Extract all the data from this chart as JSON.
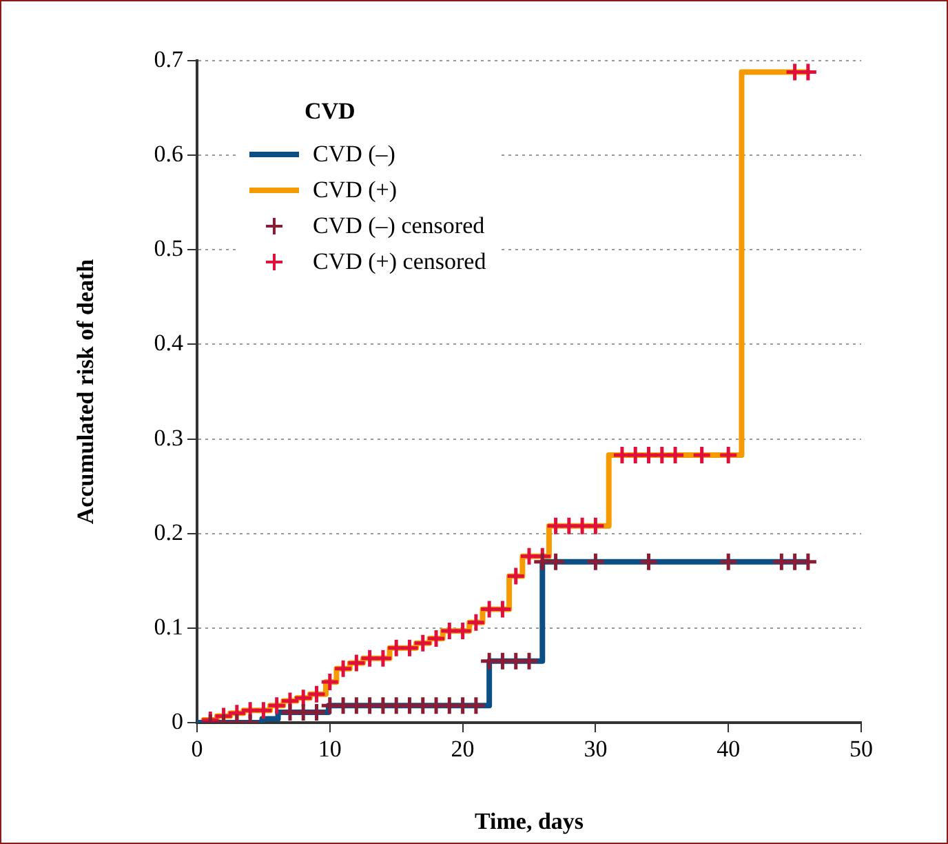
{
  "chart_data": {
    "type": "step",
    "xlabel": "Time, days",
    "ylabel": "Accumulated risk of death",
    "legend_title": "CVD",
    "legend": "top left",
    "grid": "y",
    "line_style": "solid",
    "xlim": [
      0,
      50
    ],
    "xticks": [
      0,
      10,
      20,
      30,
      40,
      50
    ],
    "ylim": [
      0,
      0.7
    ],
    "yticks": [
      0,
      0.1,
      0.2,
      0.3,
      0.4,
      0.5,
      0.6,
      0.7
    ],
    "series": [
      {
        "name": "CVD (–)",
        "color": "#0b4f85",
        "x": [
          0,
          4.9,
          6.1,
          9.9,
          22,
          26,
          46
        ],
        "values": [
          0,
          0.004,
          0.011,
          0.018,
          0.065,
          0.17,
          0.17
        ]
      },
      {
        "name": "CVD (+)",
        "color": "#f59b00",
        "x": [
          0,
          0.5,
          1.5,
          2.5,
          3.5,
          5.5,
          6.5,
          7.5,
          8.5,
          9.7,
          10.5,
          11.5,
          12.5,
          14.5,
          16.5,
          17.5,
          18.5,
          20.5,
          21.5,
          23.5,
          24.5,
          26.5,
          31,
          41,
          46
        ],
        "values": [
          0,
          0.003,
          0.007,
          0.01,
          0.013,
          0.018,
          0.023,
          0.026,
          0.03,
          0.043,
          0.057,
          0.063,
          0.068,
          0.079,
          0.084,
          0.089,
          0.097,
          0.106,
          0.12,
          0.155,
          0.176,
          0.208,
          0.283,
          0.688,
          0.688
        ]
      },
      {
        "name": "CVD (–) censored",
        "type": "scatter",
        "marker": "cross",
        "color": "#8b1c35",
        "x": [
          1,
          2,
          3,
          4,
          7,
          8,
          9,
          10,
          11,
          12,
          13,
          14,
          15,
          16,
          17,
          18,
          19,
          20,
          21,
          22,
          23,
          24,
          25,
          26,
          27,
          30,
          34,
          40,
          44,
          45,
          46
        ],
        "values": [
          0,
          0,
          0,
          0,
          0.011,
          0.011,
          0.011,
          0.018,
          0.018,
          0.018,
          0.018,
          0.018,
          0.018,
          0.018,
          0.018,
          0.018,
          0.018,
          0.018,
          0.018,
          0.065,
          0.065,
          0.065,
          0.065,
          0.17,
          0.17,
          0.17,
          0.17,
          0.17,
          0.17,
          0.17,
          0.17
        ]
      },
      {
        "name": "CVD (+) censored",
        "type": "scatter",
        "marker": "cross",
        "color": "#e0103c",
        "x": [
          1,
          2,
          3,
          4,
          5,
          6,
          7,
          8,
          9,
          10,
          11,
          12,
          13,
          14,
          15,
          16,
          17,
          18,
          19,
          20,
          21,
          22,
          23,
          24,
          25,
          26,
          27,
          28,
          29,
          30,
          32,
          33,
          34,
          35,
          36,
          38,
          40,
          45,
          46
        ],
        "values": [
          0.003,
          0.007,
          0.01,
          0.013,
          0.013,
          0.018,
          0.023,
          0.026,
          0.03,
          0.043,
          0.057,
          0.063,
          0.068,
          0.068,
          0.079,
          0.079,
          0.084,
          0.089,
          0.097,
          0.097,
          0.106,
          0.12,
          0.12,
          0.155,
          0.176,
          0.176,
          0.208,
          0.208,
          0.208,
          0.208,
          0.283,
          0.283,
          0.283,
          0.283,
          0.283,
          0.283,
          0.283,
          0.688,
          0.688
        ]
      }
    ]
  }
}
